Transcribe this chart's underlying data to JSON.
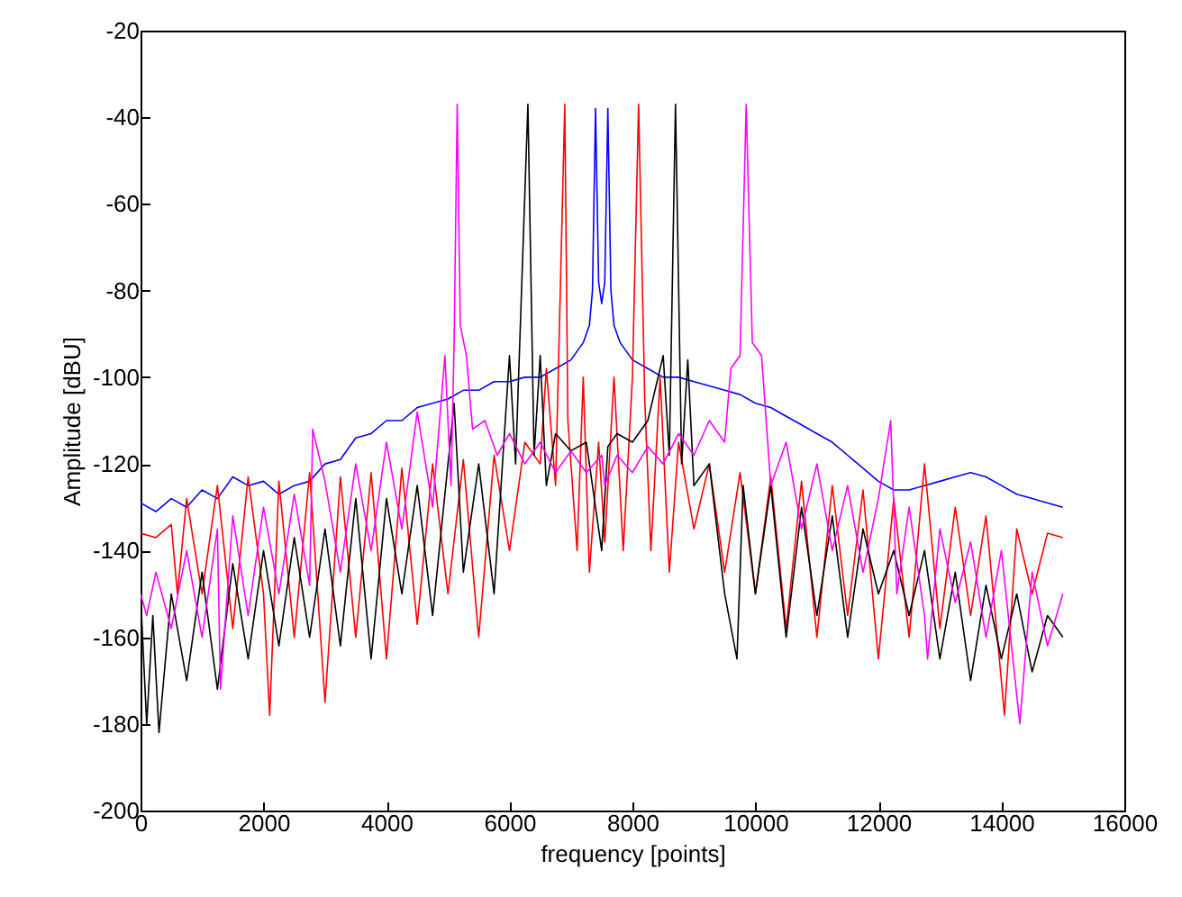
{
  "chart_data": {
    "type": "line",
    "xlabel": "frequency [points]",
    "ylabel": "Amplitude [dBU]",
    "xlim": [
      0,
      16000
    ],
    "ylim": [
      -200,
      -20
    ],
    "xticks": [
      0,
      2000,
      4000,
      6000,
      8000,
      10000,
      12000,
      14000,
      16000
    ],
    "yticks": [
      -200,
      -180,
      -160,
      -140,
      -120,
      -100,
      -80,
      -60,
      -40,
      -20
    ],
    "grid": false,
    "series": [
      {
        "color": "#0000ff",
        "x": [
          0,
          250,
          500,
          750,
          1000,
          1250,
          1500,
          1750,
          2000,
          2250,
          2500,
          2750,
          3000,
          3250,
          3500,
          3750,
          4000,
          4250,
          4500,
          4750,
          5000,
          5250,
          5500,
          5750,
          6000,
          6250,
          6500,
          6750,
          7000,
          7200,
          7300,
          7350,
          7400,
          7450,
          7500,
          7550,
          7600,
          7650,
          7700,
          7800,
          8000,
          8250,
          8500,
          8750,
          9000,
          9250,
          9500,
          9750,
          10000,
          10250,
          10500,
          10750,
          11000,
          11250,
          11500,
          11750,
          12000,
          12250,
          12500,
          12750,
          13000,
          13250,
          13500,
          13750,
          14000,
          14250,
          14500,
          14750,
          15000
        ],
        "values": [
          -129,
          -131,
          -128,
          -130,
          -126,
          -128,
          -123,
          -125,
          -124,
          -127,
          -125,
          -124,
          -120,
          -119,
          -114,
          -113,
          -110,
          -110,
          -107,
          -106,
          -105,
          -103,
          -103,
          -101,
          -101,
          -100,
          -100,
          -98,
          -96,
          -92,
          -88,
          -80,
          -38,
          -78,
          -83,
          -78,
          -38,
          -80,
          -88,
          -92,
          -96,
          -98,
          -100,
          -100,
          -101,
          -102,
          -103,
          -104,
          -106,
          -107,
          -109,
          -111,
          -113,
          -115,
          -118,
          -121,
          -124,
          -126,
          -126,
          -125,
          -124,
          -123,
          -122,
          -123,
          -125,
          -127,
          -128,
          -129,
          -130
        ]
      },
      {
        "color": "#ff0000",
        "x": [
          0,
          250,
          500,
          600,
          750,
          1000,
          1250,
          1500,
          1750,
          2000,
          2100,
          2250,
          2500,
          2750,
          3000,
          3250,
          3500,
          3750,
          4000,
          4250,
          4500,
          4750,
          5000,
          5250,
          5500,
          5750,
          6000,
          6250,
          6500,
          6600,
          6750,
          6900,
          6950,
          7100,
          7200,
          7300,
          7450,
          7550,
          7700,
          7850,
          8000,
          8100,
          8200,
          8300,
          8450,
          8600,
          8750,
          9000,
          9250,
          9500,
          9750,
          10000,
          10250,
          10500,
          10750,
          11000,
          11250,
          11500,
          11750,
          12000,
          12250,
          12500,
          12750,
          13000,
          13250,
          13500,
          13750,
          14000,
          14050,
          14250,
          14500,
          14750,
          15000
        ],
        "values": [
          -136,
          -137,
          -134,
          -150,
          -128,
          -150,
          -125,
          -158,
          -123,
          -150,
          -178,
          -124,
          -160,
          -122,
          -175,
          -123,
          -160,
          -122,
          -165,
          -121,
          -157,
          -120,
          -150,
          -119,
          -160,
          -118,
          -140,
          -115,
          -120,
          -98,
          -125,
          -37,
          -110,
          -140,
          -100,
          -145,
          -115,
          -138,
          -100,
          -140,
          -100,
          -37,
          -105,
          -140,
          -100,
          -145,
          -115,
          -135,
          -120,
          -145,
          -122,
          -150,
          -123,
          -158,
          -124,
          -160,
          -125,
          -155,
          -126,
          -165,
          -128,
          -160,
          -120,
          -158,
          -130,
          -155,
          -132,
          -170,
          -178,
          -135,
          -150,
          -136,
          -137
        ]
      },
      {
        "color": "#000000",
        "x": [
          0,
          100,
          200,
          300,
          500,
          750,
          1000,
          1250,
          1500,
          1750,
          2000,
          2250,
          2500,
          2750,
          3000,
          3250,
          3500,
          3750,
          4000,
          4250,
          4500,
          4750,
          5000,
          5100,
          5250,
          5500,
          5750,
          6000,
          6100,
          6300,
          6400,
          6500,
          6600,
          6750,
          7000,
          7250,
          7500,
          7600,
          7750,
          8000,
          8250,
          8500,
          8600,
          8700,
          8800,
          8900,
          9000,
          9250,
          9500,
          9700,
          9800,
          10000,
          10250,
          10500,
          10750,
          11000,
          11250,
          11500,
          11750,
          12000,
          12250,
          12500,
          12750,
          13000,
          13250,
          13500,
          13750,
          14000,
          14250,
          14500,
          14750,
          15000
        ],
        "values": [
          -150,
          -180,
          -155,
          -182,
          -150,
          -170,
          -145,
          -172,
          -143,
          -165,
          -140,
          -162,
          -137,
          -160,
          -135,
          -162,
          -128,
          -165,
          -128,
          -150,
          -125,
          -155,
          -120,
          -106,
          -145,
          -120,
          -150,
          -95,
          -120,
          -37,
          -118,
          -95,
          -125,
          -113,
          -117,
          -115,
          -140,
          -116,
          -113,
          -115,
          -110,
          -95,
          -118,
          -37,
          -120,
          -96,
          -125,
          -120,
          -150,
          -165,
          -125,
          -150,
          -125,
          -160,
          -130,
          -155,
          -132,
          -160,
          -135,
          -150,
          -140,
          -155,
          -140,
          -165,
          -145,
          -170,
          -148,
          -165,
          -150,
          -168,
          -155,
          -160
        ]
      },
      {
        "color": "#ff00ff",
        "x": [
          0,
          100,
          250,
          500,
          750,
          1000,
          1250,
          1300,
          1500,
          1750,
          2000,
          2250,
          2500,
          2750,
          2800,
          3000,
          3250,
          3500,
          3750,
          4000,
          4250,
          4500,
          4750,
          4950,
          5050,
          5100,
          5150,
          5200,
          5300,
          5400,
          5600,
          5800,
          6000,
          6250,
          6500,
          6750,
          7000,
          7250,
          7500,
          7550,
          7750,
          8000,
          8250,
          8500,
          8750,
          9000,
          9250,
          9500,
          9600,
          9750,
          9850,
          9950,
          10100,
          10250,
          10500,
          10750,
          11000,
          11250,
          11500,
          11750,
          12000,
          12200,
          12300,
          12500,
          12750,
          12800,
          13000,
          13250,
          13500,
          13750,
          14000,
          14300,
          14500,
          14750,
          15000
        ],
        "values": [
          -150,
          -155,
          -145,
          -158,
          -140,
          -160,
          -135,
          -172,
          -132,
          -155,
          -130,
          -150,
          -127,
          -148,
          -112,
          -124,
          -145,
          -120,
          -140,
          -115,
          -135,
          -108,
          -130,
          -95,
          -125,
          -92,
          -37,
          -88,
          -95,
          -112,
          -110,
          -118,
          -113,
          -120,
          -115,
          -122,
          -117,
          -122,
          -118,
          -125,
          -118,
          -122,
          -116,
          -120,
          -113,
          -118,
          -110,
          -115,
          -98,
          -95,
          -37,
          -92,
          -95,
          -125,
          -115,
          -135,
          -120,
          -140,
          -125,
          -145,
          -128,
          -110,
          -150,
          -130,
          -155,
          -165,
          -135,
          -152,
          -138,
          -160,
          -140,
          -180,
          -145,
          -162,
          -150
        ]
      }
    ]
  }
}
